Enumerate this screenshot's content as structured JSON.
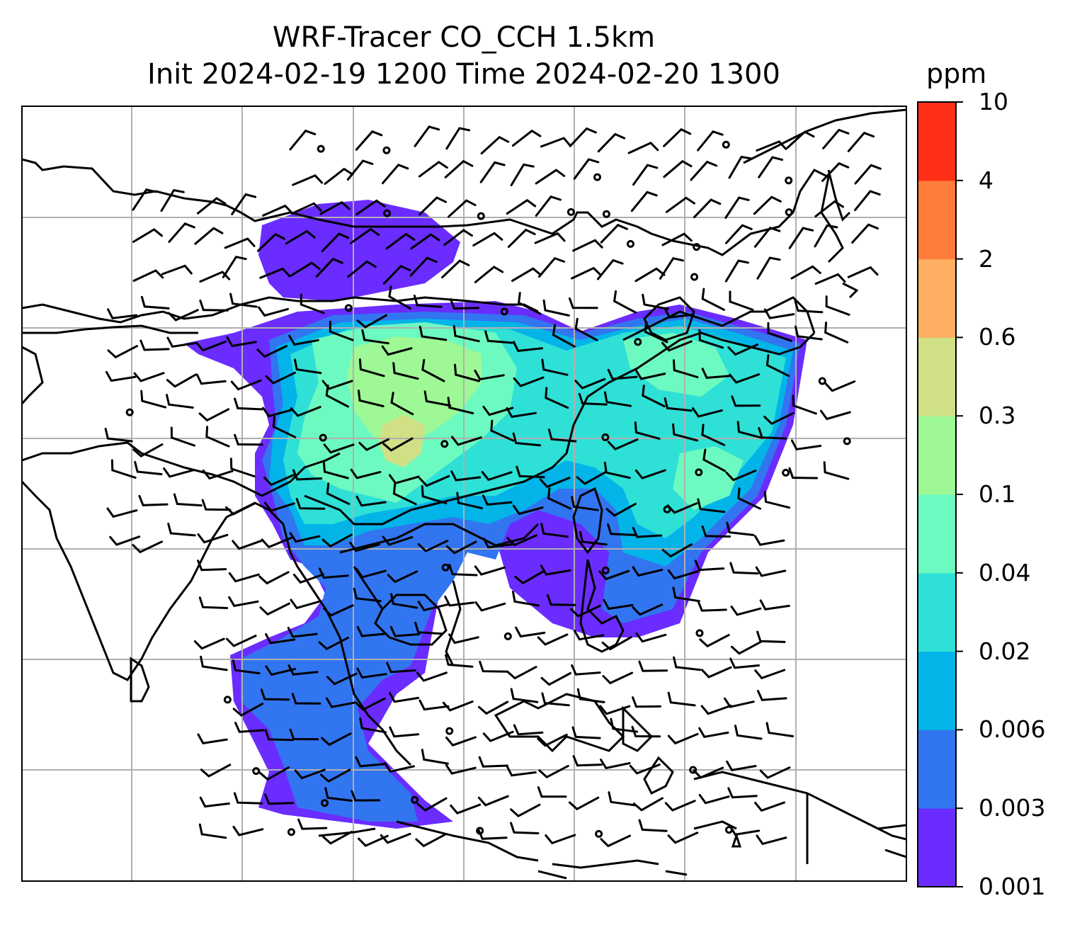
{
  "title_line1": "WRF-Tracer CO_CCH 1.5km",
  "title_line2": "Init 2024-02-19 1200 Time 2024-02-20 1300",
  "colorbar": {
    "unit": "ppm",
    "levels": [
      "0.001",
      "0.003",
      "0.006",
      "0.02",
      "0.04",
      "0.1",
      "0.3",
      "0.6",
      "2",
      "4",
      "10"
    ],
    "colors": [
      "#6a2cff",
      "#3275f0",
      "#03b4e8",
      "#2fe0d6",
      "#6dfac0",
      "#9ef896",
      "#cfe085",
      "#fdae61",
      "#ff7b3a",
      "#ff2f18"
    ]
  },
  "map": {
    "gridlines": true,
    "coastline_color": "#000000",
    "grid_color": "#b0b0b0",
    "overlay": "wind barbs"
  }
}
